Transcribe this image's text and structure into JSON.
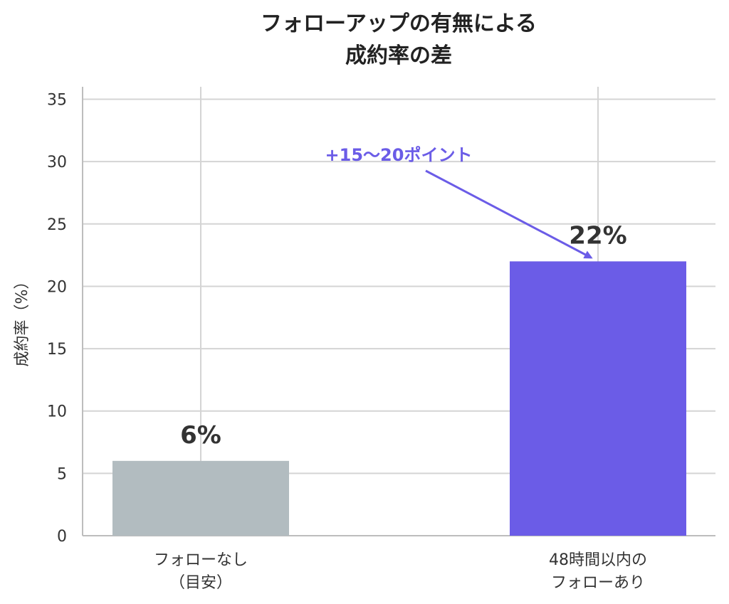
{
  "chart_data": {
    "type": "bar",
    "title": [
      "フォローアップの有無による",
      "成約率の差"
    ],
    "ylabel": "成約率（%）",
    "ylim": [
      0,
      36
    ],
    "yticks": [
      0,
      5,
      10,
      15,
      20,
      25,
      30,
      35
    ],
    "grid": true,
    "categories": [
      [
        "フォローなし",
        "（目安）"
      ],
      [
        "48時間以内の",
        "フォローあり"
      ]
    ],
    "values": [
      6,
      22
    ],
    "value_labels": [
      "6%",
      "22%"
    ],
    "colors": [
      "#b2bcc0",
      "#6b5ce7"
    ],
    "annotation": {
      "text": "+15〜20ポイント",
      "color": "#6b5ce7",
      "target_category_index": 1
    }
  }
}
